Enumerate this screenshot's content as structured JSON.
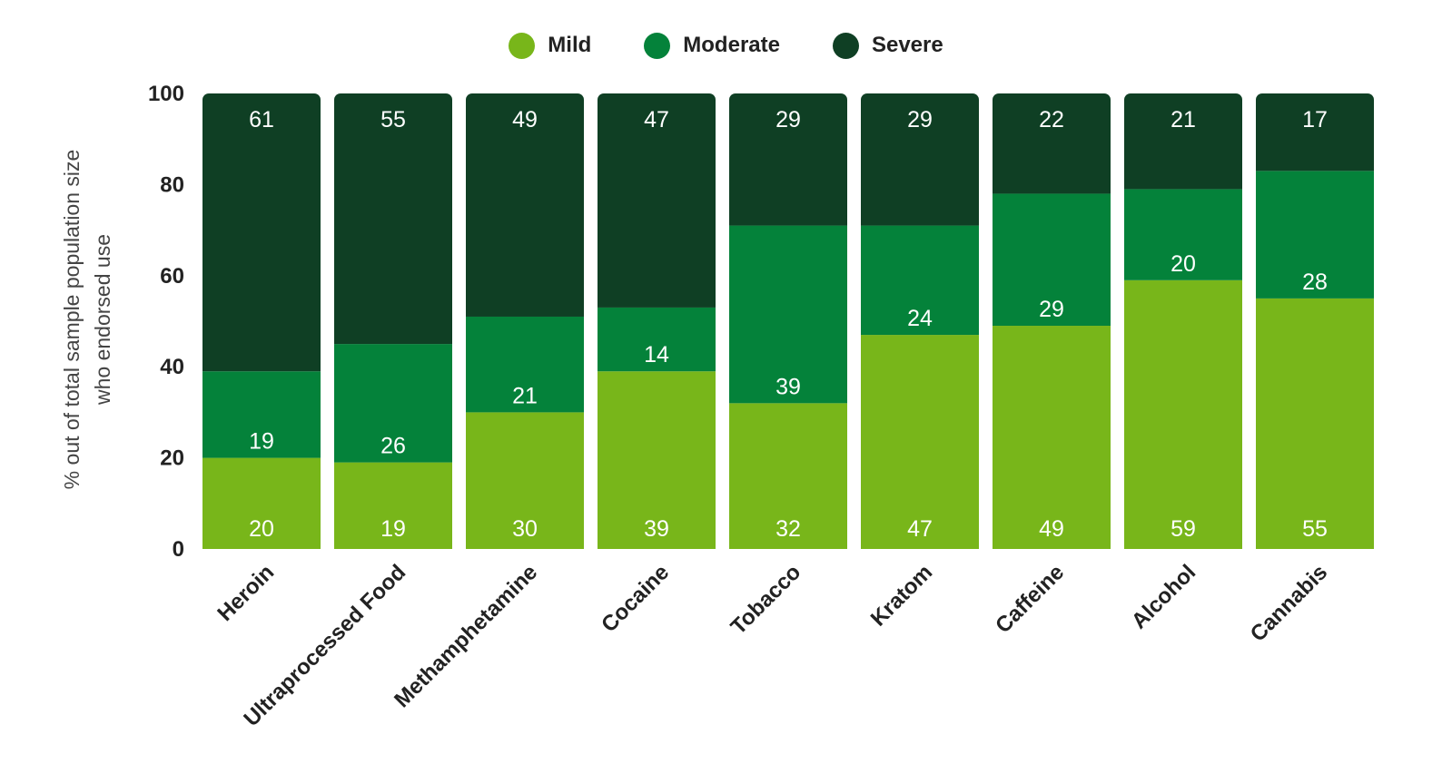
{
  "chart_data": {
    "type": "bar",
    "stacked": true,
    "categories": [
      "Heroin",
      "Ultraprocessed Food",
      "Methamphetamine",
      "Cocaine",
      "Tobacco",
      "Kratom",
      "Caffeine",
      "Alcohol",
      "Cannabis"
    ],
    "series": [
      {
        "name": "Mild",
        "color": "#78b61a",
        "values": [
          20,
          19,
          30,
          39,
          32,
          47,
          49,
          59,
          55
        ]
      },
      {
        "name": "Moderate",
        "color": "#04823a",
        "values": [
          19,
          26,
          21,
          14,
          39,
          24,
          29,
          20,
          28
        ]
      },
      {
        "name": "Severe",
        "color": "#0f3f24",
        "values": [
          61,
          55,
          49,
          47,
          29,
          29,
          22,
          21,
          17
        ]
      }
    ],
    "ylim": [
      0,
      100
    ],
    "yticks": [
      0,
      20,
      40,
      60,
      80,
      100
    ],
    "ylabel_line1": "% out of total sample population size",
    "ylabel_line2": "who endorsed use",
    "legend_position": "top"
  }
}
